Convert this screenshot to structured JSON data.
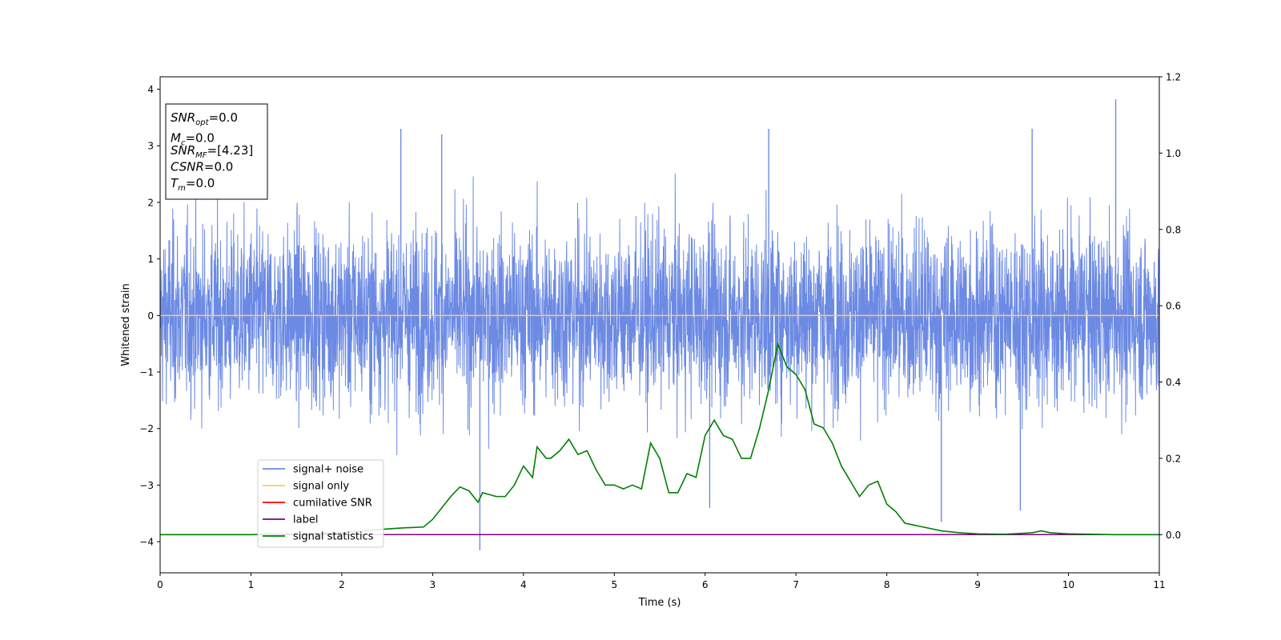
{
  "chart_data": {
    "type": "line",
    "xlabel": "Time (s)",
    "ylabel": "Whitened strain",
    "xlim": [
      0,
      11
    ],
    "ylim": [
      -4.55,
      4.22
    ],
    "y2lim": [
      -0.1,
      1.2
    ],
    "xticks": [
      "0",
      "1",
      "2",
      "3",
      "4",
      "5",
      "6",
      "7",
      "8",
      "9",
      "10",
      "11"
    ],
    "yticks": [
      "−4",
      "−3",
      "−2",
      "−1",
      "0",
      "1",
      "2",
      "3",
      "4"
    ],
    "y2ticks": [
      "0.0",
      "0.2",
      "0.4",
      "0.6",
      "0.8",
      "1.0",
      "1.2"
    ],
    "grid": false,
    "legend_position": "lower-left",
    "legend": [
      {
        "name": "signal+ noise",
        "color": "#6c8ae4"
      },
      {
        "name": "signal only",
        "color": "#ffc866"
      },
      {
        "name": "cumilative SNR",
        "color": "#ff0000"
      },
      {
        "name": "label",
        "color": "#800080"
      },
      {
        "name": "signal statistics",
        "color": "#008000"
      }
    ],
    "annotation": [
      {
        "sym": "SNR",
        "sub": "opt",
        "val": "=0.0"
      },
      {
        "sym": "M",
        "sub": "c",
        "val": "=0.0"
      },
      {
        "sym": "SNR",
        "sub": "MF",
        "val": "=[4.23]"
      },
      {
        "sym": "CSNR",
        "sub": "",
        "val": "=0.0"
      },
      {
        "sym": "T",
        "sub": "m",
        "val": "=0.0"
      }
    ],
    "series": [
      {
        "name": "signal+ noise",
        "axis": "left",
        "style": "noise",
        "color": "#6c8ae4",
        "center": 0,
        "envelope_sigma": 0.78,
        "peaks": [
          {
            "x": 2.65,
            "y": 3.3
          },
          {
            "x": 3.1,
            "y": 3.2
          },
          {
            "x": 6.7,
            "y": 3.3
          },
          {
            "x": 9.6,
            "y": 3.3
          },
          {
            "x": 10.52,
            "y": 3.82
          },
          {
            "x": 3.52,
            "y": -4.15
          },
          {
            "x": 8.6,
            "y": -3.65
          },
          {
            "x": 9.47,
            "y": -3.45
          },
          {
            "x": 6.05,
            "y": -3.4
          }
        ]
      },
      {
        "name": "signal only",
        "axis": "left",
        "color": "#ffc866",
        "x": [
          0,
          11
        ],
        "y": [
          0,
          0
        ]
      },
      {
        "name": "cumilative SNR",
        "axis": "right",
        "color": "#ff0000",
        "x": [
          0,
          11
        ],
        "y": [
          0,
          0
        ]
      },
      {
        "name": "label",
        "axis": "right",
        "color": "#800080",
        "x": [
          0,
          11
        ],
        "y": [
          0,
          0
        ]
      },
      {
        "name": "signal statistics",
        "axis": "right",
        "color": "#008000",
        "x": [
          0,
          0.5,
          1.0,
          1.5,
          2.0,
          2.5,
          2.7,
          2.9,
          3.0,
          3.1,
          3.2,
          3.3,
          3.4,
          3.5,
          3.55,
          3.7,
          3.8,
          3.9,
          4.0,
          4.1,
          4.15,
          4.25,
          4.3,
          4.4,
          4.5,
          4.6,
          4.7,
          4.8,
          4.9,
          5.0,
          5.1,
          5.2,
          5.3,
          5.4,
          5.5,
          5.6,
          5.7,
          5.8,
          5.9,
          6.0,
          6.1,
          6.2,
          6.3,
          6.4,
          6.5,
          6.6,
          6.7,
          6.8,
          6.9,
          7.0,
          7.1,
          7.2,
          7.3,
          7.4,
          7.5,
          7.6,
          7.7,
          7.8,
          7.9,
          8.0,
          8.1,
          8.2,
          8.4,
          8.6,
          8.8,
          9.0,
          9.3,
          9.6,
          9.7,
          9.8,
          10.0,
          10.5,
          11.0
        ],
        "y": [
          0.0,
          0.0,
          0.0,
          0.002,
          0.005,
          0.015,
          0.018,
          0.02,
          0.04,
          0.07,
          0.1,
          0.125,
          0.115,
          0.085,
          0.11,
          0.1,
          0.1,
          0.13,
          0.18,
          0.15,
          0.23,
          0.2,
          0.2,
          0.22,
          0.25,
          0.21,
          0.22,
          0.17,
          0.13,
          0.13,
          0.12,
          0.13,
          0.12,
          0.24,
          0.2,
          0.11,
          0.11,
          0.16,
          0.15,
          0.26,
          0.3,
          0.26,
          0.25,
          0.2,
          0.2,
          0.28,
          0.38,
          0.5,
          0.44,
          0.42,
          0.38,
          0.29,
          0.28,
          0.24,
          0.18,
          0.14,
          0.1,
          0.13,
          0.14,
          0.08,
          0.06,
          0.03,
          0.02,
          0.01,
          0.005,
          0.002,
          0.001,
          0.005,
          0.01,
          0.005,
          0.002,
          0.0,
          0.0
        ]
      }
    ]
  }
}
